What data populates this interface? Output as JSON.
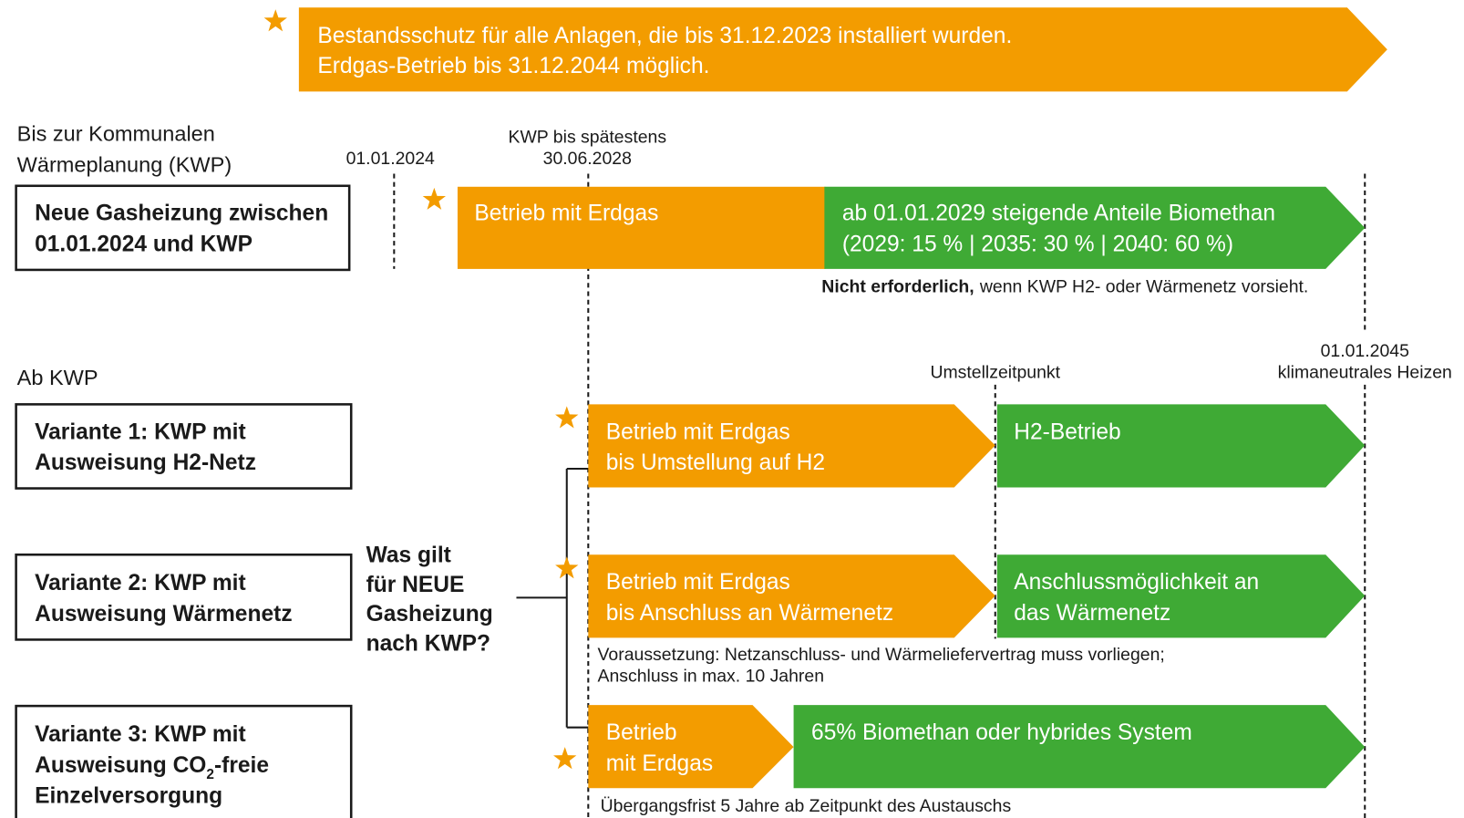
{
  "banner": {
    "lines": [
      "Bestandsschutz für alle Anlagen, die bis 31.12.2023 installiert wurden.",
      "Erdgas-Betrieb bis 31.12.2044 möglich."
    ]
  },
  "section_before": {
    "label": [
      "Bis zur Kommunalen",
      "Wärmeplanung (KWP)"
    ],
    "date_start": "01.01.2024",
    "kwp_deadline": [
      "KWP bis spätestens",
      "30.06.2028"
    ],
    "box": [
      "Neue Gasheizung zwischen",
      "01.01.2024 und KWP"
    ],
    "orange": "Betrieb mit Erdgas",
    "green": [
      "ab 01.01.2029 steigende Anteile Biomethan",
      "(2029: 15 % | 2035: 30 % | 2040: 60 %)"
    ],
    "note": {
      "bold": "Nicht erforderlich,",
      "rest": "wenn KWP H2- oder Wärmenetz vorsieht."
    }
  },
  "section_after": {
    "label": "Ab KWP",
    "switch_point": "Umstellzeitpunkt",
    "end_date": [
      "01.01.2045",
      "klimaneutrales Heizen"
    ],
    "question": [
      "Was gilt",
      "für NEUE",
      "Gasheizung",
      "nach KWP?"
    ],
    "variants": [
      {
        "box": [
          "Variante 1: KWP mit",
          "Ausweisung H2-Netz"
        ],
        "orange": [
          "Betrieb mit Erdgas",
          "bis Umstellung auf H2"
        ],
        "green": [
          "H2-Betrieb"
        ]
      },
      {
        "box": [
          "Variante 2: KWP mit",
          "Ausweisung Wärmenetz"
        ],
        "orange": [
          "Betrieb mit Erdgas",
          "bis Anschluss an Wärmenetz"
        ],
        "green": [
          "Anschlussmöglichkeit an",
          "das Wärmenetz"
        ],
        "note": [
          "Voraussetzung: Netzanschluss- und Wärmeliefervertrag muss vorliegen;",
          "Anschluss in max. 10 Jahren"
        ]
      },
      {
        "box": [
          "Variante 3: KWP mit",
          {
            "pre": "Ausweisung CO",
            "sub": "2",
            "post": "-freie"
          },
          "Einzelversorgung"
        ],
        "orange": [
          "Betrieb",
          "mit Erdgas"
        ],
        "green": [
          "65% Biomethan oder hybrides System"
        ],
        "note": [
          "Übergangsfrist 5 Jahre ab Zeitpunkt des Austauschs"
        ]
      }
    ]
  }
}
